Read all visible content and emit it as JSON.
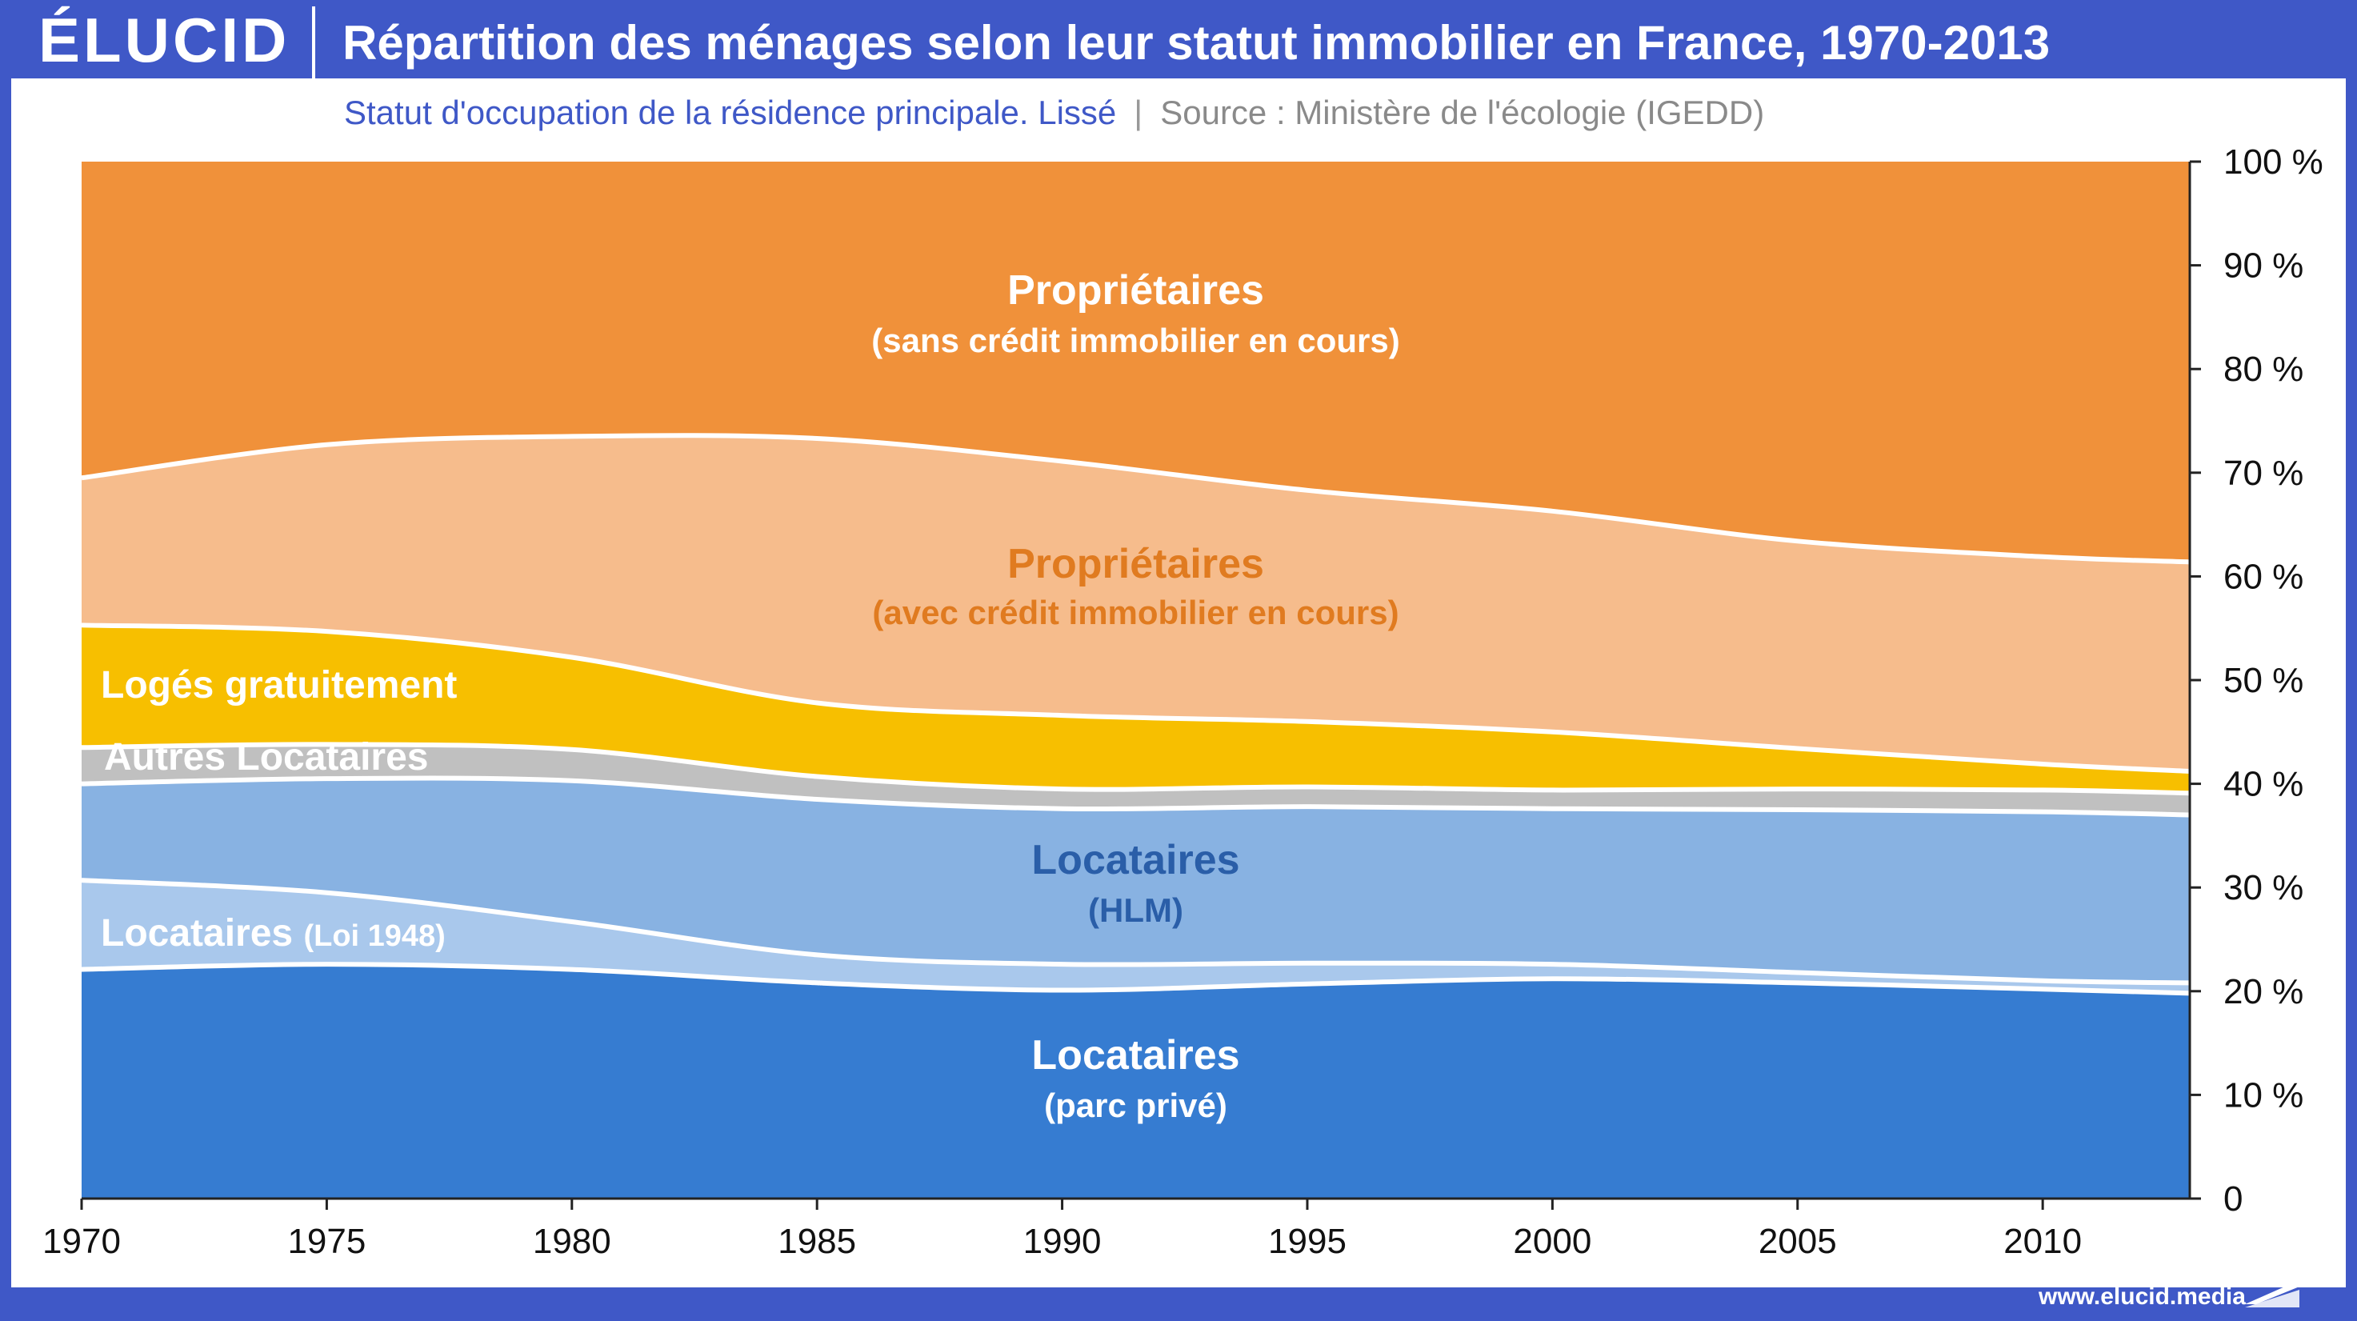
{
  "header": {
    "logo": "ÉLUCID",
    "title": "Répartition des ménages selon leur statut immobilier en France, 1970-2013"
  },
  "subtitle": {
    "main": "Statut d'occupation de la résidence principale. Lissé",
    "separator": "|",
    "source": "Source : Ministère de l'écologie (IGEDD)"
  },
  "footer": {
    "url": "www.elucid.media"
  },
  "chart_data": {
    "type": "area",
    "stacked": true,
    "x": [
      1970,
      1975,
      1980,
      1985,
      1990,
      1995,
      2000,
      2005,
      2010,
      2013
    ],
    "xticks": [
      "1970",
      "1975",
      "1980",
      "1985",
      "1990",
      "1995",
      "2000",
      "2005",
      "2010"
    ],
    "xlim": [
      1970,
      2013
    ],
    "ylim": [
      0,
      100
    ],
    "yticks": [
      "0",
      "10 %",
      "20 %",
      "30 %",
      "40 %",
      "50 %",
      "60 %",
      "70 %",
      "80 %",
      "90 %",
      "100 %"
    ],
    "y_axis_side": "right",
    "grid": false,
    "series": [
      {
        "name_line1": "Locataires",
        "name_line2": "(parc privé)",
        "color": "#367cd1",
        "label_color": "#ffffff",
        "values": [
          22.1,
          22.6,
          22.1,
          20.8,
          20.1,
          20.7,
          21.2,
          20.8,
          20.2,
          19.8
        ]
      },
      {
        "name_line1": "Locataires",
        "name_line2": "(Loi 1948)",
        "color": "#a9c8ec",
        "label_color": "#ffffff",
        "values": [
          8.6,
          6.9,
          4.6,
          2.7,
          2.5,
          2.0,
          1.4,
          1.0,
          0.8,
          1.0
        ]
      },
      {
        "name_line1": "Locataires",
        "name_line2": "(HLM)",
        "color": "#88b2e2",
        "label_color": "#2a5ea8",
        "values": [
          9.3,
          11.0,
          13.6,
          15.0,
          15.0,
          15.1,
          15.0,
          15.7,
          16.3,
          16.2
        ]
      },
      {
        "name_line1": "Autres Locataires",
        "name_line2": "",
        "color": "#c0c0c0",
        "label_color": "#ffffff",
        "values": [
          3.5,
          3.3,
          3.0,
          2.2,
          1.9,
          1.9,
          1.8,
          2.0,
          2.1,
          2.1
        ]
      },
      {
        "name_line1": "Logés gratuitement",
        "name_line2": "",
        "color": "#f7bf00",
        "label_color": "#ffffff",
        "values": [
          11.8,
          10.9,
          8.9,
          7.1,
          7.1,
          6.3,
          5.6,
          3.9,
          2.5,
          2.1
        ]
      },
      {
        "name_line1": "Propriétaires",
        "name_line2": "(avec crédit immobilier en cours)",
        "color": "#f6bc8c",
        "label_color": "#e07b20",
        "values": [
          14.2,
          18.0,
          21.3,
          25.5,
          24.5,
          22.3,
          21.3,
          20.0,
          20.0,
          20.2
        ]
      },
      {
        "name_line1": "Propriétaires",
        "name_line2": "(sans crédit immobilier en cours)",
        "color": "#f0913a",
        "label_color": "#ffffff",
        "values": [
          30.5,
          27.3,
          26.5,
          26.7,
          28.9,
          31.7,
          33.7,
          36.6,
          38.1,
          38.6
        ]
      }
    ]
  }
}
